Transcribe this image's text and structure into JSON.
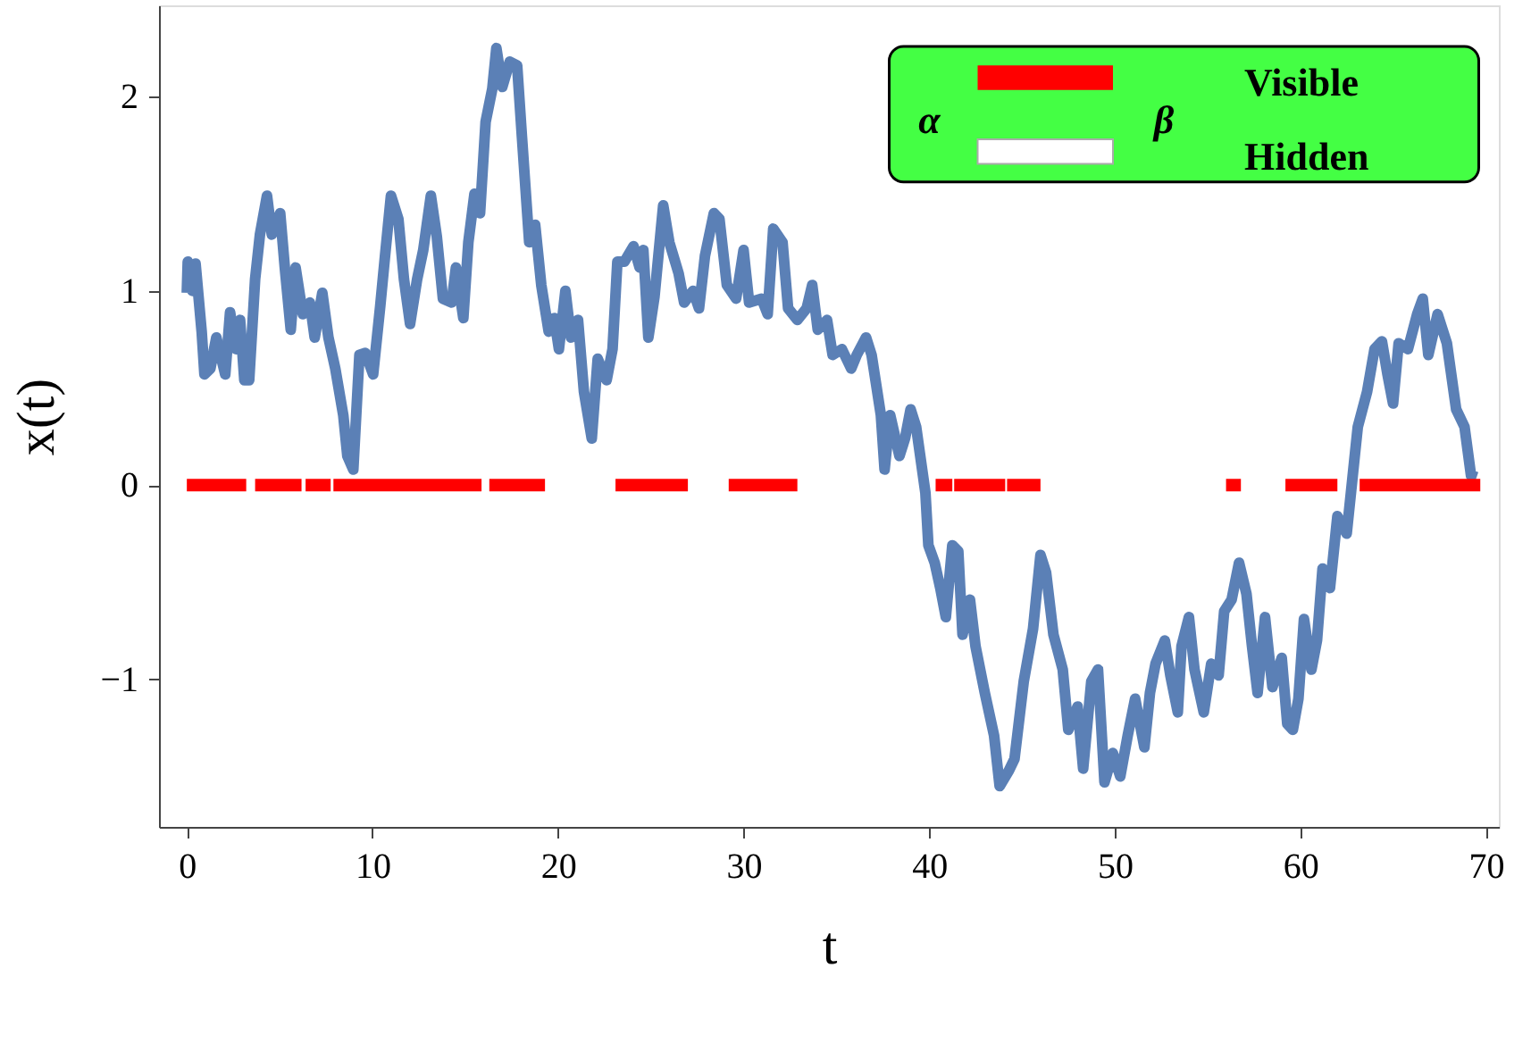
{
  "chart_data": {
    "type": "line",
    "xlabel": "t",
    "ylabel": "x(t)",
    "xlim": [
      -1.5,
      70.7
    ],
    "ylim": [
      -1.76,
      2.47
    ],
    "xticks": [
      0,
      10,
      20,
      30,
      40,
      50,
      60,
      70
    ],
    "yticks": [
      {
        "value": -1,
        "label": "−1"
      },
      0,
      1,
      2
    ],
    "grid": false,
    "marker": "none",
    "line_style": "solid",
    "annotations": [
      "Visible",
      "Hidden",
      "α",
      "β"
    ],
    "series": [
      {
        "color": "#5b80b6",
        "x": [
          0,
          0.05,
          0.3,
          0.47,
          0.8,
          0.95,
          1.27,
          1.59,
          2.07,
          2.33,
          2.65,
          2.87,
          3.1,
          3.36,
          3.68,
          3.94,
          4.32,
          4.58,
          5.03,
          5.28,
          5.6,
          5.86,
          6.25,
          6.63,
          6.89,
          7.3,
          7.63,
          8.0,
          8.43,
          8.65,
          8.97,
          9.3,
          9.62,
          10.04,
          10.42,
          10.68,
          11.0,
          11.4,
          11.7,
          12.03,
          12.41,
          12.74,
          13.15,
          13.47,
          13.8,
          14.27,
          14.5,
          14.9,
          15.17,
          15.5,
          15.8,
          16.1,
          16.46,
          16.68,
          17.0,
          17.4,
          17.8,
          18.06,
          18.45,
          18.77,
          19.1,
          19.5,
          19.8,
          20.05,
          20.4,
          20.7,
          21.08,
          21.4,
          21.82,
          22.14,
          22.62,
          22.94,
          23.2,
          23.58,
          24.07,
          24.4,
          24.6,
          24.87,
          25.2,
          25.67,
          26.0,
          26.5,
          26.8,
          27.28,
          27.6,
          27.92,
          28.4,
          28.7,
          29.1,
          29.6,
          30.0,
          30.3,
          30.97,
          31.3,
          31.6,
          32.1,
          32.4,
          32.9,
          33.4,
          33.7,
          34.0,
          34.5,
          34.8,
          35.3,
          35.8,
          36.1,
          36.6,
          36.9,
          37.4,
          37.6,
          37.9,
          38.4,
          38.7,
          39.0,
          39.3,
          39.8,
          39.96,
          40.3,
          40.6,
          40.9,
          41.25,
          41.57,
          41.8,
          42.2,
          42.5,
          43.0,
          43.5,
          43.8,
          44.3,
          44.6,
          45.1,
          45.6,
          46.0,
          46.3,
          46.7,
          47.2,
          47.5,
          48.0,
          48.3,
          48.74,
          49.1,
          49.45,
          49.9,
          50.3,
          50.7,
          51.1,
          51.6,
          51.9,
          52.2,
          52.7,
          53.0,
          53.4,
          53.6,
          54.0,
          54.3,
          54.8,
          55.2,
          55.6,
          55.9,
          56.3,
          56.7,
          57.1,
          57.4,
          57.7,
          58.1,
          58.5,
          59.0,
          59.3,
          59.6,
          59.9,
          60.2,
          60.6,
          60.9,
          61.2,
          61.6,
          62.0,
          62.5,
          63.0,
          63.1,
          63.6,
          64.0,
          64.4,
          64.7,
          65.0,
          65.3,
          65.8,
          66.3,
          66.6,
          66.9,
          67.4,
          67.9,
          68.4,
          68.85,
          69.2,
          69.5
        ],
        "values": [
          0.99,
          1.15,
          1.0,
          1.14,
          0.79,
          0.57,
          0.6,
          0.76,
          0.57,
          0.89,
          0.7,
          0.85,
          0.54,
          0.54,
          1.06,
          1.29,
          1.49,
          1.29,
          1.4,
          1.12,
          0.8,
          1.12,
          0.88,
          0.94,
          0.76,
          0.99,
          0.76,
          0.6,
          0.36,
          0.15,
          0.08,
          0.67,
          0.68,
          0.57,
          0.92,
          1.18,
          1.49,
          1.37,
          1.06,
          0.83,
          1.06,
          1.21,
          1.49,
          1.28,
          0.96,
          0.94,
          1.12,
          0.86,
          1.25,
          1.5,
          1.4,
          1.87,
          2.04,
          2.25,
          2.05,
          2.18,
          2.16,
          1.79,
          1.25,
          1.34,
          1.03,
          0.79,
          0.86,
          0.7,
          1.0,
          0.76,
          0.85,
          0.48,
          0.24,
          0.65,
          0.54,
          0.7,
          1.15,
          1.15,
          1.23,
          1.12,
          1.21,
          0.76,
          0.97,
          1.44,
          1.25,
          1.09,
          0.94,
          1.0,
          0.91,
          1.18,
          1.4,
          1.37,
          1.03,
          0.96,
          1.21,
          0.94,
          0.96,
          0.88,
          1.32,
          1.25,
          0.91,
          0.85,
          0.91,
          1.03,
          0.8,
          0.85,
          0.67,
          0.7,
          0.6,
          0.67,
          0.76,
          0.67,
          0.36,
          0.08,
          0.36,
          0.15,
          0.24,
          0.39,
          0.3,
          -0.04,
          -0.31,
          -0.4,
          -0.53,
          -0.68,
          -0.31,
          -0.34,
          -0.77,
          -0.59,
          -0.83,
          -1.07,
          -1.29,
          -1.55,
          -1.47,
          -1.41,
          -1.01,
          -0.74,
          -0.36,
          -0.45,
          -0.77,
          -0.95,
          -1.26,
          -1.14,
          -1.46,
          -1.01,
          -0.95,
          -1.53,
          -1.38,
          -1.5,
          -1.29,
          -1.1,
          -1.35,
          -1.07,
          -0.92,
          -0.8,
          -0.98,
          -1.17,
          -0.83,
          -0.68,
          -0.95,
          -1.17,
          -0.92,
          -0.98,
          -0.65,
          -0.59,
          -0.4,
          -0.56,
          -0.83,
          -1.07,
          -0.68,
          -1.04,
          -0.89,
          -1.23,
          -1.26,
          -1.1,
          -0.69,
          -0.95,
          -0.8,
          -0.43,
          -0.53,
          -0.16,
          -0.25,
          0.21,
          0.3,
          0.48,
          0.7,
          0.74,
          0.57,
          0.42,
          0.73,
          0.7,
          0.88,
          0.96,
          0.67,
          0.88,
          0.73,
          0.39,
          0.3,
          0.05,
          0.04
        ]
      },
      {
        "color": "#ff0000",
        "x": [
          0,
          3.2,
          null,
          3.68,
          6.18,
          null,
          6.4,
          7.75,
          null,
          7.9,
          15.88,
          null,
          16.3,
          19.3,
          null,
          23.1,
          27.0,
          null,
          29.2,
          32.9,
          null,
          40.35,
          41.25,
          null,
          41.35,
          44.1,
          null,
          44.2,
          46.0,
          null,
          56.0,
          56.8,
          null,
          59.2,
          62.0,
          null,
          63.2,
          69.7
        ],
        "values": [
          0,
          0,
          null,
          0,
          0,
          null,
          0,
          0,
          null,
          0,
          0,
          null,
          0,
          0,
          null,
          0,
          0,
          null,
          0,
          0,
          null,
          0,
          0,
          null,
          0,
          0,
          null,
          0,
          0,
          null,
          0,
          0,
          null,
          0,
          0,
          null,
          0,
          0
        ]
      }
    ]
  }
}
